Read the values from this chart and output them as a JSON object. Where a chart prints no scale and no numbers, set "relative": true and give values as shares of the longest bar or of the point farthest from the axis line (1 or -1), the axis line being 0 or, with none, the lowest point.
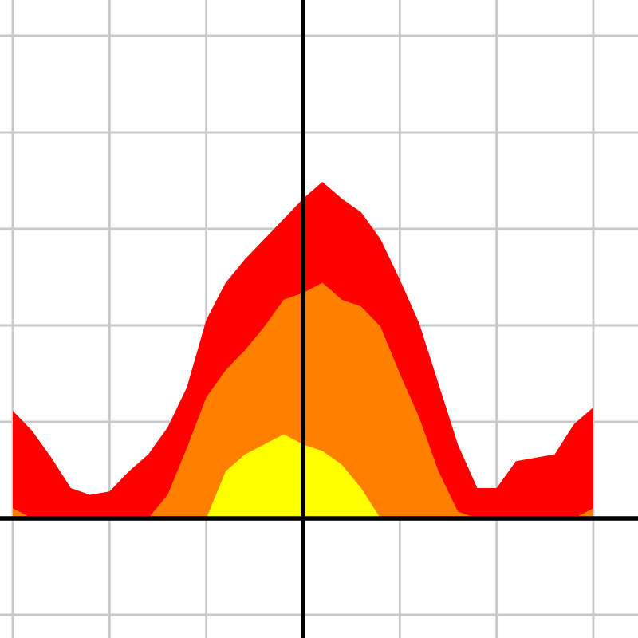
{
  "chart_data": {
    "type": "area",
    "relative": true,
    "grid": true,
    "categories": [
      null,
      null,
      null,
      null,
      null,
      null,
      null,
      null,
      null,
      null,
      null,
      null,
      null,
      null,
      null,
      null,
      null,
      null,
      null,
      null,
      null,
      null,
      null,
      null,
      null,
      null,
      null,
      null,
      null,
      null,
      null
    ],
    "series": [
      {
        "color": "#ff0000",
        "values": [
          0.32,
          0.26,
          0.18,
          0.09,
          0.07,
          0.08,
          0.14,
          0.19,
          0.27,
          0.39,
          0.59,
          0.7,
          0.77,
          0.83,
          0.89,
          0.95,
          1.0,
          0.95,
          0.91,
          0.83,
          0.71,
          0.58,
          0.4,
          0.22,
          0.09,
          0.09,
          0.17,
          0.18,
          0.19,
          0.28,
          0.33
        ]
      },
      {
        "color": "#ff8000",
        "values": [
          0.03,
          0,
          0,
          0,
          0,
          0,
          0,
          0,
          0.07,
          0.21,
          0.36,
          0.44,
          0.5,
          0.57,
          0.65,
          0.67,
          0.7,
          0.65,
          0.63,
          0.57,
          0.43,
          0.3,
          0.14,
          0.02,
          0,
          0,
          0,
          0,
          0,
          0,
          0.03
        ]
      },
      {
        "color": "#ffff00",
        "values": [
          0,
          0,
          0,
          0,
          0,
          0,
          0,
          0,
          0,
          0,
          0,
          0.14,
          0.19,
          0.22,
          0.25,
          0.22,
          0.2,
          0.16,
          0.09,
          0,
          0,
          0,
          0,
          0,
          0,
          0,
          0,
          0,
          0,
          0,
          0
        ]
      }
    ]
  }
}
